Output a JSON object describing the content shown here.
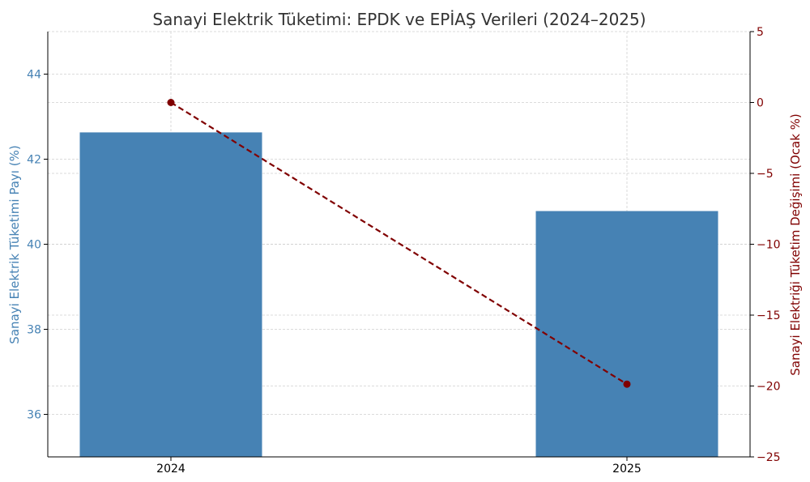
{
  "chart_data": {
    "type": "bar",
    "title": "Sanayi Elektrik Tüketimi: EPDK ve EPİAŞ Verileri (2024–2025)",
    "categories": [
      "2024",
      "2025"
    ],
    "xlabel": "",
    "series": [
      {
        "kind": "bar",
        "axis": "left",
        "color": "#4682b4",
        "values": [
          42.63,
          40.78
        ]
      },
      {
        "kind": "line",
        "axis": "right",
        "color": "#800000",
        "line_style": "dashed",
        "marker": "circle",
        "values": [
          0,
          -19.87
        ]
      }
    ],
    "ylabel_left": "Sanayi Elektrik Tüketimi Payı (%)",
    "ylabel_right": "Sanayi Elektriği Tüketim Değişimi (Ocak %)",
    "ylim_left": [
      35,
      45
    ],
    "ylim_right": [
      -25,
      5
    ],
    "left_ticks": [
      "36",
      "38",
      "40",
      "42",
      "44"
    ],
    "right_ticks": [
      "5",
      "0",
      "−5",
      "−10",
      "−15",
      "−20",
      "−25"
    ],
    "left_axis_color": "#4682b4",
    "right_axis_color": "#800000",
    "grid": true
  }
}
